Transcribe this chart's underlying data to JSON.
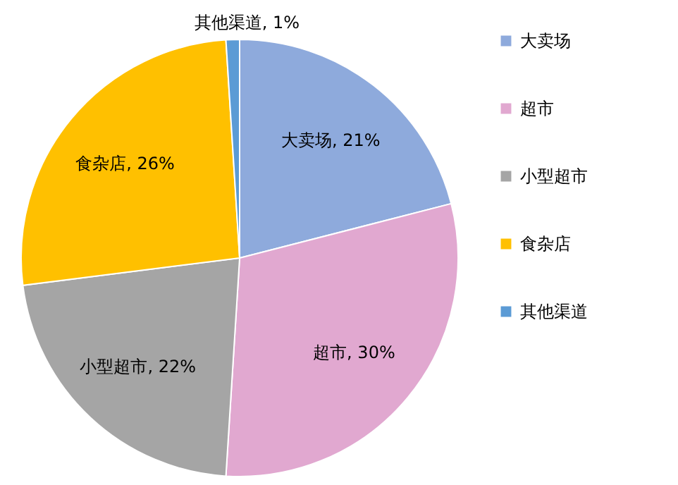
{
  "chart_data": {
    "type": "pie",
    "categories": [
      "大卖场",
      "超市",
      "小型超市",
      "食杂店",
      "其他渠道"
    ],
    "values": [
      21,
      30,
      22,
      26,
      1
    ],
    "value_labels": [
      "大卖场, 21%",
      "超市, 30%",
      "小型超市, 22%",
      "食杂店, 26%",
      "其他渠道, 1%"
    ],
    "colors": [
      "#8eaadc",
      "#e1a8d0",
      "#a5a5a5",
      "#ffc000",
      "#5b9bd5"
    ],
    "legend": "right"
  }
}
